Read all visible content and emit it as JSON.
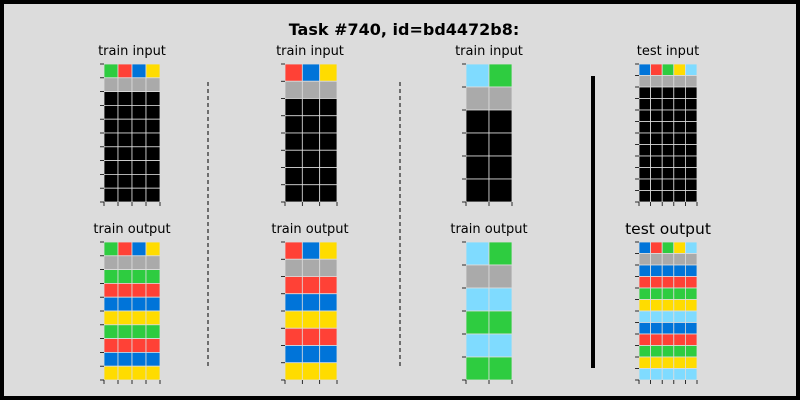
{
  "title": "Task #740, id=bd4472b8:",
  "colors": {
    "0": "#000000",
    "1": "#0074d9",
    "2": "#ff4136",
    "3": "#2ecc40",
    "4": "#ffdc00",
    "5": "#aaaaaa",
    "6": "#f012be",
    "7": "#ff851b",
    "8": "#7fdbff",
    "9": "#870c25"
  },
  "pairs": [
    {
      "input_label": "train input",
      "output_label": "train output",
      "input": [
        [
          3,
          2,
          1,
          4
        ],
        [
          5,
          5,
          5,
          5
        ],
        [
          0,
          0,
          0,
          0
        ],
        [
          0,
          0,
          0,
          0
        ],
        [
          0,
          0,
          0,
          0
        ],
        [
          0,
          0,
          0,
          0
        ],
        [
          0,
          0,
          0,
          0
        ],
        [
          0,
          0,
          0,
          0
        ],
        [
          0,
          0,
          0,
          0
        ],
        [
          0,
          0,
          0,
          0
        ]
      ],
      "output": [
        [
          3,
          2,
          1,
          4
        ],
        [
          5,
          5,
          5,
          5
        ],
        [
          3,
          3,
          3,
          3
        ],
        [
          2,
          2,
          2,
          2
        ],
        [
          1,
          1,
          1,
          1
        ],
        [
          4,
          4,
          4,
          4
        ],
        [
          3,
          3,
          3,
          3
        ],
        [
          2,
          2,
          2,
          2
        ],
        [
          1,
          1,
          1,
          1
        ],
        [
          4,
          4,
          4,
          4
        ]
      ]
    },
    {
      "input_label": "train input",
      "output_label": "train output",
      "input": [
        [
          2,
          1,
          4
        ],
        [
          5,
          5,
          5
        ],
        [
          0,
          0,
          0
        ],
        [
          0,
          0,
          0
        ],
        [
          0,
          0,
          0
        ],
        [
          0,
          0,
          0
        ],
        [
          0,
          0,
          0
        ],
        [
          0,
          0,
          0
        ]
      ],
      "output": [
        [
          2,
          1,
          4
        ],
        [
          5,
          5,
          5
        ],
        [
          2,
          2,
          2
        ],
        [
          1,
          1,
          1
        ],
        [
          4,
          4,
          4
        ],
        [
          2,
          2,
          2
        ],
        [
          1,
          1,
          1
        ],
        [
          4,
          4,
          4
        ]
      ]
    },
    {
      "input_label": "train input",
      "output_label": "train output",
      "input": [
        [
          8,
          3
        ],
        [
          5,
          5
        ],
        [
          0,
          0
        ],
        [
          0,
          0
        ],
        [
          0,
          0
        ],
        [
          0,
          0
        ]
      ],
      "output": [
        [
          8,
          3
        ],
        [
          5,
          5
        ],
        [
          8,
          8
        ],
        [
          3,
          3
        ],
        [
          8,
          8
        ],
        [
          3,
          3
        ]
      ]
    },
    {
      "input_label": "test input",
      "output_label": "test output",
      "input": [
        [
          1,
          2,
          3,
          4,
          8
        ],
        [
          5,
          5,
          5,
          5,
          5
        ],
        [
          0,
          0,
          0,
          0,
          0
        ],
        [
          0,
          0,
          0,
          0,
          0
        ],
        [
          0,
          0,
          0,
          0,
          0
        ],
        [
          0,
          0,
          0,
          0,
          0
        ],
        [
          0,
          0,
          0,
          0,
          0
        ],
        [
          0,
          0,
          0,
          0,
          0
        ],
        [
          0,
          0,
          0,
          0,
          0
        ],
        [
          0,
          0,
          0,
          0,
          0
        ],
        [
          0,
          0,
          0,
          0,
          0
        ],
        [
          0,
          0,
          0,
          0,
          0
        ]
      ],
      "output": [
        [
          1,
          2,
          3,
          4,
          8
        ],
        [
          5,
          5,
          5,
          5,
          5
        ],
        [
          1,
          1,
          1,
          1,
          1
        ],
        [
          2,
          2,
          2,
          2,
          2
        ],
        [
          3,
          3,
          3,
          3,
          3
        ],
        [
          4,
          4,
          4,
          4,
          4
        ],
        [
          8,
          8,
          8,
          8,
          8
        ],
        [
          1,
          1,
          1,
          1,
          1
        ],
        [
          2,
          2,
          2,
          2,
          2
        ],
        [
          3,
          3,
          3,
          3,
          3
        ],
        [
          4,
          4,
          4,
          4,
          4
        ],
        [
          8,
          8,
          8,
          8,
          8
        ]
      ]
    }
  ]
}
